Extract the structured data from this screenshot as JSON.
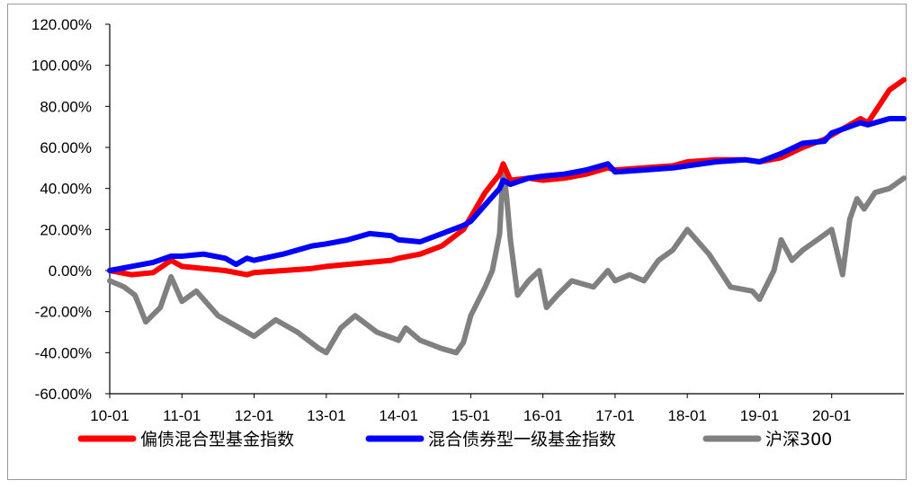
{
  "chart_data": {
    "type": "line",
    "title": "",
    "xlabel": "",
    "ylabel": "",
    "ylim": [
      -60,
      120
    ],
    "y_tick_labels": [
      "-60.00%",
      "-40.00%",
      "-20.00%",
      "0.00%",
      "20.00%",
      "40.00%",
      "60.00%",
      "80.00%",
      "100.00%",
      "120.00%"
    ],
    "y_ticks": [
      -60,
      -40,
      -20,
      0,
      20,
      40,
      60,
      80,
      100,
      120
    ],
    "x_tick_labels": [
      "10-01",
      "11-01",
      "12-01",
      "13-01",
      "14-01",
      "15-01",
      "16-01",
      "17-01",
      "18-01",
      "19-01",
      "20-01"
    ],
    "x_ticks": [
      0,
      1,
      2,
      3,
      4,
      5,
      6,
      7,
      8,
      9,
      10
    ],
    "xlim": [
      0,
      11
    ],
    "grid": false,
    "legend_position": "bottom",
    "series": [
      {
        "name": "偏债混合型基金指数",
        "color": "#ff0000",
        "x": [
          0,
          0.3,
          0.6,
          0.85,
          1.0,
          1.3,
          1.6,
          1.9,
          2.0,
          2.4,
          2.8,
          3.0,
          3.3,
          3.6,
          3.9,
          4.0,
          4.3,
          4.6,
          4.9,
          5.0,
          5.2,
          5.4,
          5.45,
          5.55,
          5.8,
          6.0,
          6.3,
          6.6,
          6.9,
          7.0,
          7.4,
          7.8,
          8.0,
          8.4,
          8.8,
          9.0,
          9.3,
          9.6,
          9.9,
          10.0,
          10.2,
          10.4,
          10.5,
          10.8,
          11.0
        ],
        "values": [
          0,
          -2,
          -1,
          5,
          2,
          1,
          0,
          -2,
          -1,
          0,
          1,
          2,
          3,
          4,
          5,
          6,
          8,
          12,
          20,
          26,
          38,
          47,
          52,
          44,
          45,
          44,
          45,
          47,
          50,
          49,
          50,
          51,
          53,
          54,
          54,
          53,
          55,
          60,
          64,
          66,
          70,
          74,
          72,
          88,
          93
        ]
      },
      {
        "name": "混合债券型一级基金指数",
        "color": "#0000ff",
        "x": [
          0,
          0.3,
          0.6,
          0.85,
          1.0,
          1.3,
          1.6,
          1.75,
          1.9,
          2.0,
          2.4,
          2.8,
          3.0,
          3.3,
          3.6,
          3.9,
          4.0,
          4.3,
          4.6,
          4.9,
          5.0,
          5.2,
          5.4,
          5.45,
          5.55,
          5.8,
          6.0,
          6.3,
          6.6,
          6.9,
          7.0,
          7.4,
          7.8,
          8.0,
          8.4,
          8.8,
          9.0,
          9.3,
          9.6,
          9.9,
          10.0,
          10.4,
          10.5,
          10.8,
          11.0
        ],
        "values": [
          0,
          2,
          4,
          7,
          7,
          8,
          6,
          3,
          6,
          5,
          8,
          12,
          13,
          15,
          18,
          17,
          15,
          14,
          18,
          22,
          24,
          32,
          40,
          44,
          42,
          45,
          46,
          47,
          49,
          52,
          48,
          49,
          50,
          51,
          53,
          54,
          53,
          57,
          62,
          63,
          67,
          72,
          71,
          74,
          74
        ]
      },
      {
        "name": "沪深300",
        "color": "#808080",
        "x": [
          0,
          0.2,
          0.35,
          0.5,
          0.7,
          0.85,
          1.0,
          1.2,
          1.5,
          1.8,
          2.0,
          2.3,
          2.6,
          2.9,
          3.0,
          3.2,
          3.4,
          3.7,
          4.0,
          4.1,
          4.3,
          4.6,
          4.8,
          4.9,
          5.0,
          5.2,
          5.3,
          5.4,
          5.45,
          5.5,
          5.55,
          5.65,
          5.8,
          5.95,
          6.05,
          6.2,
          6.4,
          6.7,
          6.9,
          7.0,
          7.2,
          7.4,
          7.6,
          7.8,
          8.0,
          8.3,
          8.6,
          8.9,
          9.0,
          9.2,
          9.3,
          9.45,
          9.6,
          9.8,
          10.0,
          10.15,
          10.25,
          10.35,
          10.45,
          10.6,
          10.8,
          11.0
        ],
        "values": [
          -5,
          -8,
          -12,
          -25,
          -18,
          -3,
          -15,
          -10,
          -22,
          -28,
          -32,
          -24,
          -30,
          -38,
          -40,
          -28,
          -22,
          -30,
          -34,
          -28,
          -34,
          -38,
          -40,
          -35,
          -22,
          -8,
          0,
          18,
          50,
          35,
          15,
          -12,
          -5,
          0,
          -18,
          -12,
          -5,
          -8,
          0,
          -5,
          -2,
          -5,
          5,
          10,
          20,
          8,
          -8,
          -10,
          -14,
          0,
          15,
          5,
          10,
          15,
          20,
          -2,
          25,
          35,
          30,
          38,
          40,
          45
        ]
      }
    ]
  }
}
